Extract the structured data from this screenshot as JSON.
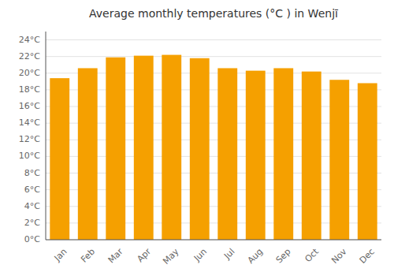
{
  "chart_data": {
    "type": "bar",
    "title": "Average monthly temperatures (°C ) in Wenjī",
    "categories": [
      "Jan",
      "Feb",
      "Mar",
      "Apr",
      "May",
      "Jun",
      "Jul",
      "Aug",
      "Sep",
      "Oct",
      "Nov",
      "Dec"
    ],
    "values": [
      19.4,
      20.6,
      21.9,
      22.1,
      22.2,
      21.8,
      20.6,
      20.3,
      20.6,
      20.2,
      19.2,
      18.8
    ],
    "color": "#F5A000",
    "ylim": [
      0,
      25
    ],
    "yticks": [
      {
        "value": 0,
        "label": "0°C"
      },
      {
        "value": 2,
        "label": "2°C"
      },
      {
        "value": 4,
        "label": "4°C"
      },
      {
        "value": 6,
        "label": "6°C"
      },
      {
        "value": 8,
        "label": "8°C"
      },
      {
        "value": 10,
        "label": "10°C"
      },
      {
        "value": 12,
        "label": "12°C"
      },
      {
        "value": 14,
        "label": "14°C"
      },
      {
        "value": 16,
        "label": "16°C"
      },
      {
        "value": 18,
        "label": "18°C"
      },
      {
        "value": 20,
        "label": "20°C"
      },
      {
        "value": 22,
        "label": "22°C"
      },
      {
        "value": 24,
        "label": "24°C"
      }
    ],
    "grid": true
  }
}
